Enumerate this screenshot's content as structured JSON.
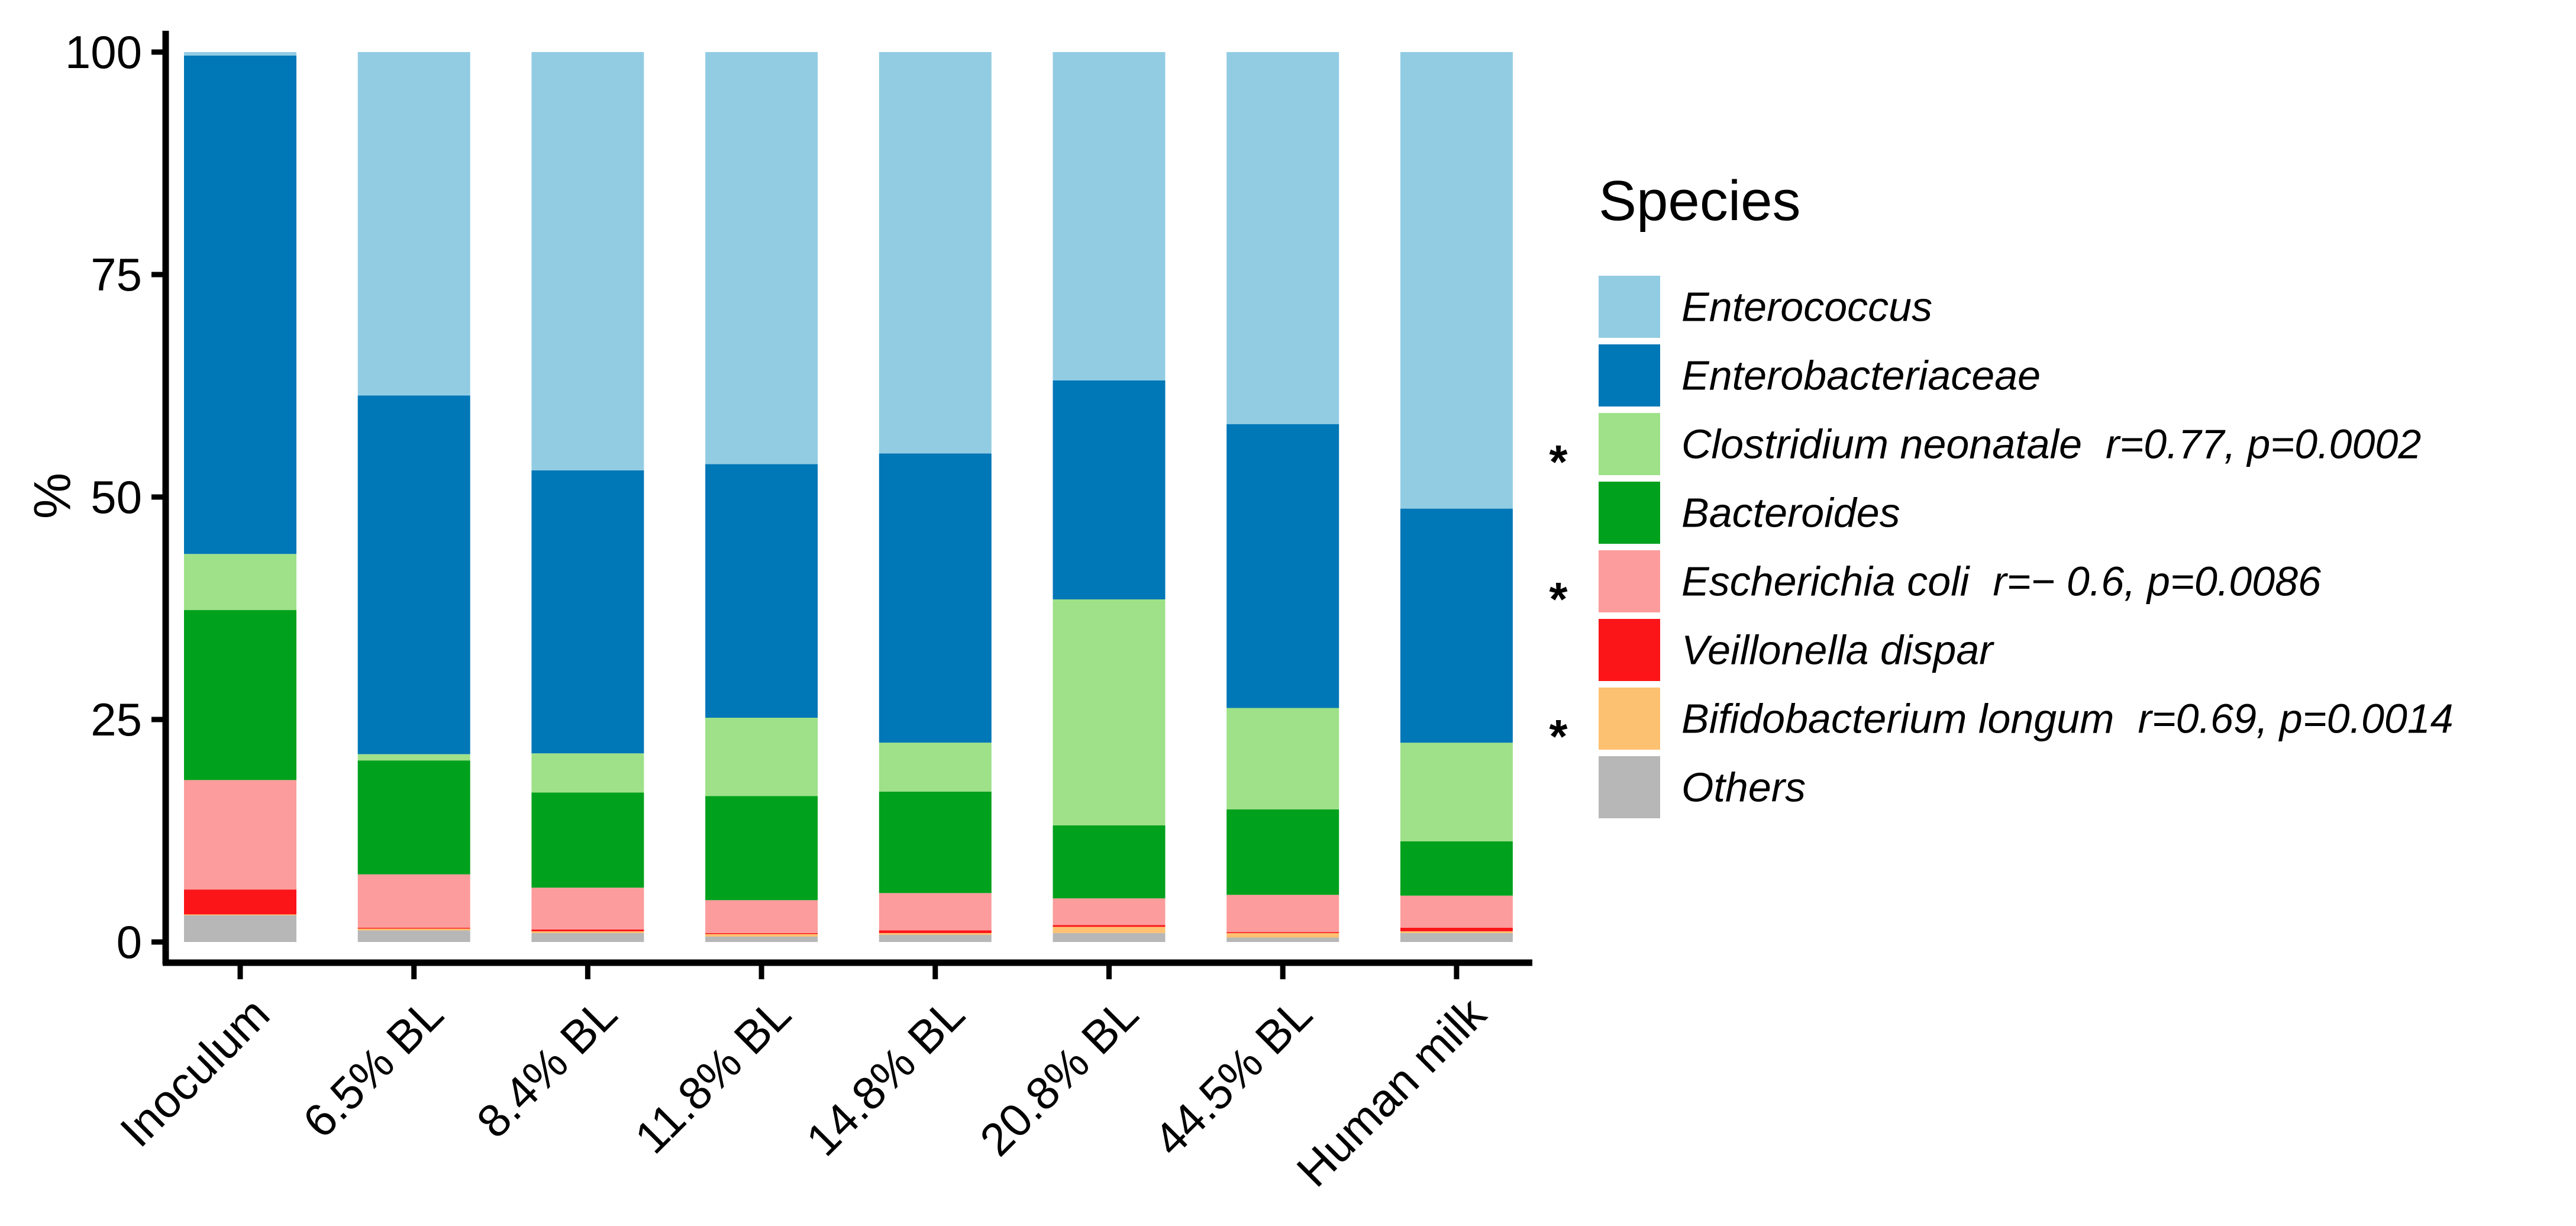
{
  "chart_data": {
    "type": "bar",
    "stacked": true,
    "title": "",
    "xlabel": "",
    "ylabel": "%",
    "ylim": [
      0,
      100
    ],
    "yticks": [
      "0",
      "25",
      "50",
      "75",
      "100"
    ],
    "yticks_values": [
      0,
      25,
      50,
      75,
      100
    ],
    "categories": [
      "Inoculum",
      "6.5% BL",
      "8.4% BL",
      "11.8% BL",
      "14.8% BL",
      "20.8% BL",
      "44.5% BL",
      "Human milk"
    ],
    "legend_title": "Species",
    "series": [
      {
        "name": "Enterococcus",
        "color": "#92cce3",
        "values": [
          0.4,
          38.6,
          47.0,
          46.3,
          45.1,
          36.9,
          41.8,
          51.3
        ]
      },
      {
        "name": "Enterobacteriaceae",
        "color": "#0077b7",
        "values": [
          56.0,
          40.3,
          31.8,
          28.5,
          32.5,
          24.6,
          31.9,
          26.3
        ]
      },
      {
        "name": "Clostridium neonatale",
        "color": "#9ee188",
        "stat": "r=0.77, p=0.0002",
        "significant": true,
        "values": [
          6.3,
          0.7,
          4.4,
          8.8,
          5.5,
          25.4,
          11.4,
          11.1
        ]
      },
      {
        "name": "Bacteroides",
        "color": "#00a11c",
        "values": [
          19.1,
          12.8,
          10.7,
          11.7,
          11.4,
          8.2,
          9.6,
          6.1
        ]
      },
      {
        "name": "Escherichia coli",
        "color": "#fc9c9c",
        "stat": "r=− 0.6, p=0.0086",
        "significant": true,
        "values": [
          12.3,
          6.0,
          4.7,
          3.7,
          4.2,
          3.0,
          4.2,
          3.6
        ]
      },
      {
        "name": "Veillonella dispar",
        "color": "#fb1418",
        "values": [
          2.8,
          0.1,
          0.2,
          0.1,
          0.3,
          0.2,
          0.1,
          0.4
        ]
      },
      {
        "name": "Bifidobacterium longum",
        "color": "#fdc172",
        "stat": "r=0.69, p=0.0014",
        "significant": true,
        "values": [
          0.1,
          0.2,
          0.2,
          0.3,
          0.2,
          0.7,
          0.5,
          0.2
        ]
      },
      {
        "name": "Others",
        "color": "#b7b7b7",
        "values": [
          3.0,
          1.3,
          1.0,
          0.6,
          0.8,
          1.0,
          0.5,
          1.0
        ]
      }
    ]
  }
}
